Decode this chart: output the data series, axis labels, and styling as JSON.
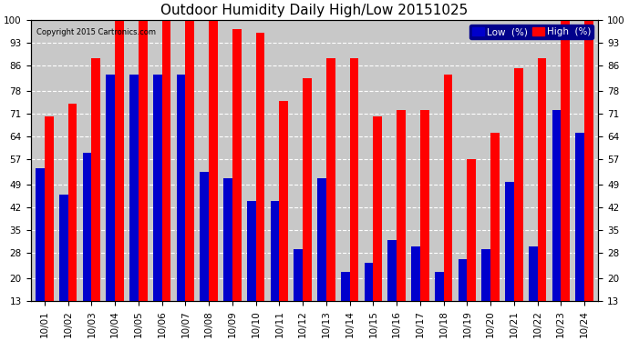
{
  "title": "Outdoor Humidity Daily High/Low 20151025",
  "copyright": "Copyright 2015 Cartronics.com",
  "dates": [
    "10/01",
    "10/02",
    "10/03",
    "10/04",
    "10/05",
    "10/06",
    "10/07",
    "10/08",
    "10/09",
    "10/10",
    "10/11",
    "10/12",
    "10/13",
    "10/14",
    "10/15",
    "10/16",
    "10/17",
    "10/18",
    "10/19",
    "10/20",
    "10/21",
    "10/22",
    "10/23",
    "10/24"
  ],
  "high": [
    70,
    74,
    88,
    100,
    100,
    100,
    100,
    100,
    97,
    96,
    75,
    82,
    88,
    88,
    70,
    72,
    72,
    83,
    57,
    65,
    85,
    88,
    100,
    100
  ],
  "low": [
    54,
    46,
    59,
    83,
    83,
    83,
    83,
    53,
    51,
    44,
    44,
    29,
    51,
    22,
    25,
    32,
    30,
    22,
    26,
    29,
    50,
    30,
    72,
    65
  ],
  "high_color": "#ff0000",
  "low_color": "#0000cc",
  "bg_color": "#ffffff",
  "plot_bg_color": "#c8c8c8",
  "grid_color": "#ffffff",
  "yticks": [
    13,
    20,
    28,
    35,
    42,
    49,
    57,
    64,
    71,
    78,
    86,
    93,
    100
  ],
  "ymin": 13,
  "ymax": 100,
  "title_fontsize": 11,
  "tick_fontsize": 7.5,
  "legend_fontsize": 7.5,
  "bar_width": 0.38
}
